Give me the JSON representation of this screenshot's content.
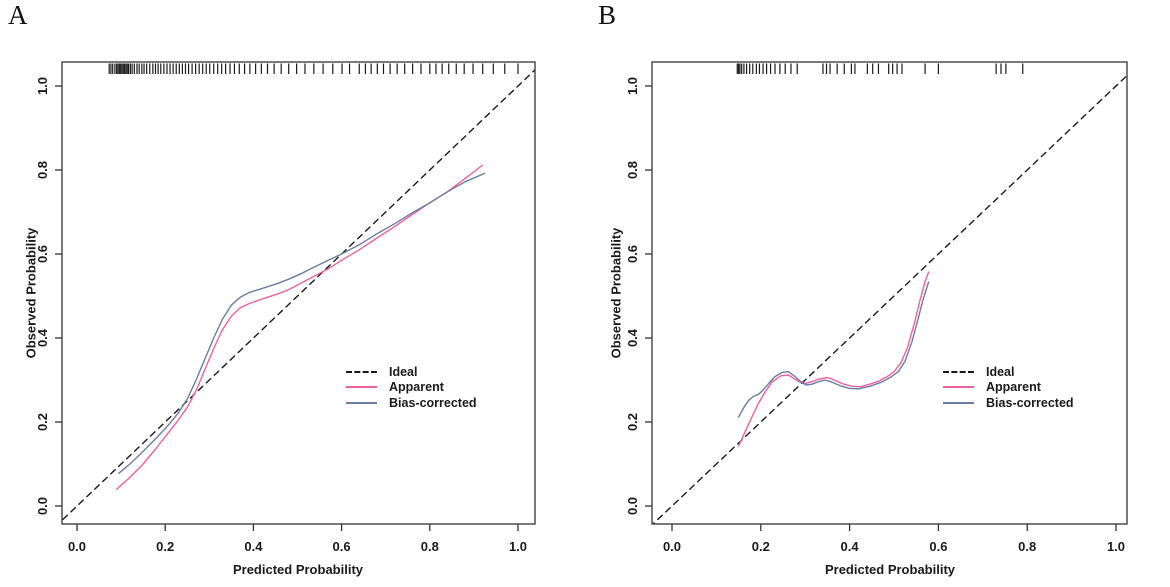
{
  "chart_data": [
    {
      "type": "line",
      "panel_label": "A",
      "title": "",
      "xlabel": "Predicted Probability",
      "ylabel": "Observed  Probability",
      "xlim": [
        -0.04,
        1.04
      ],
      "ylim": [
        -0.04,
        1.04
      ],
      "xticks": [
        "0.0",
        "0.2",
        "0.4",
        "0.6",
        "0.8",
        "1.0"
      ],
      "yticks": [
        "0.0",
        "0.2",
        "0.4",
        "0.6",
        "0.8",
        "1.0"
      ],
      "grid": false,
      "legend": {
        "position": "center-right",
        "entries": [
          {
            "label": "Ideal",
            "color": "#1a1a1a",
            "style": "dashed"
          },
          {
            "label": "Apparent",
            "color": "#EC619F",
            "style": "solid"
          },
          {
            "label": "Bias-corrected",
            "color": "#6A7CA3",
            "style": "solid"
          }
        ]
      },
      "series": [
        {
          "name": "Ideal",
          "color": "#1a1a1a",
          "style": "dashed",
          "points": [
            [
              -0.05,
              -0.05
            ],
            [
              1.08,
              1.08
            ]
          ]
        },
        {
          "name": "Apparent",
          "color": "#EC619F",
          "style": "solid",
          "points": [
            [
              0.09,
              0.04
            ],
            [
              0.12,
              0.068
            ],
            [
              0.15,
              0.1
            ],
            [
              0.18,
              0.138
            ],
            [
              0.21,
              0.178
            ],
            [
              0.23,
              0.205
            ],
            [
              0.25,
              0.235
            ],
            [
              0.27,
              0.275
            ],
            [
              0.29,
              0.325
            ],
            [
              0.31,
              0.375
            ],
            [
              0.33,
              0.42
            ],
            [
              0.35,
              0.452
            ],
            [
              0.37,
              0.472
            ],
            [
              0.39,
              0.482
            ],
            [
              0.42,
              0.493
            ],
            [
              0.45,
              0.503
            ],
            [
              0.48,
              0.515
            ],
            [
              0.51,
              0.532
            ],
            [
              0.54,
              0.548
            ],
            [
              0.57,
              0.565
            ],
            [
              0.6,
              0.585
            ],
            [
              0.64,
              0.61
            ],
            [
              0.68,
              0.638
            ],
            [
              0.72,
              0.665
            ],
            [
              0.76,
              0.694
            ],
            [
              0.8,
              0.722
            ],
            [
              0.84,
              0.748
            ],
            [
              0.88,
              0.78
            ],
            [
              0.92,
              0.812
            ]
          ]
        },
        {
          "name": "Bias-corrected",
          "color": "#6A7CA3",
          "style": "solid",
          "points": [
            [
              0.095,
              0.078
            ],
            [
              0.12,
              0.1
            ],
            [
              0.15,
              0.13
            ],
            [
              0.18,
              0.162
            ],
            [
              0.21,
              0.196
            ],
            [
              0.23,
              0.222
            ],
            [
              0.25,
              0.255
            ],
            [
              0.27,
              0.3
            ],
            [
              0.29,
              0.35
            ],
            [
              0.31,
              0.4
            ],
            [
              0.33,
              0.445
            ],
            [
              0.35,
              0.478
            ],
            [
              0.37,
              0.497
            ],
            [
              0.39,
              0.508
            ],
            [
              0.42,
              0.518
            ],
            [
              0.45,
              0.528
            ],
            [
              0.48,
              0.54
            ],
            [
              0.51,
              0.554
            ],
            [
              0.54,
              0.57
            ],
            [
              0.57,
              0.585
            ],
            [
              0.6,
              0.6
            ],
            [
              0.64,
              0.622
            ],
            [
              0.68,
              0.648
            ],
            [
              0.72,
              0.672
            ],
            [
              0.76,
              0.698
            ],
            [
              0.8,
              0.722
            ],
            [
              0.84,
              0.748
            ],
            [
              0.88,
              0.772
            ],
            [
              0.924,
              0.792
            ]
          ]
        }
      ],
      "rug": [
        0.073,
        0.077,
        0.081,
        0.086,
        0.09,
        0.093,
        0.096,
        0.099,
        0.102,
        0.105,
        0.108,
        0.111,
        0.114,
        0.117,
        0.121,
        0.125,
        0.13,
        0.136,
        0.141,
        0.147,
        0.152,
        0.158,
        0.165,
        0.172,
        0.178,
        0.184,
        0.19,
        0.197,
        0.204,
        0.211,
        0.218,
        0.225,
        0.232,
        0.239,
        0.246,
        0.253,
        0.261,
        0.269,
        0.277,
        0.285,
        0.293,
        0.301,
        0.31,
        0.319,
        0.328,
        0.337,
        0.347,
        0.357,
        0.368,
        0.38,
        0.392,
        0.405,
        0.418,
        0.432,
        0.447,
        0.463,
        0.48,
        0.498,
        0.517,
        0.537,
        0.558,
        0.58,
        0.601,
        0.618,
        0.64,
        0.654,
        0.667,
        0.681,
        0.695,
        0.71,
        0.726,
        0.743,
        0.761,
        0.78,
        0.8,
        0.814,
        0.828,
        0.843,
        0.86,
        0.878,
        0.898,
        0.92,
        0.944,
        0.97,
        1.0
      ]
    },
    {
      "type": "line",
      "panel_label": "B",
      "title": "",
      "xlabel": "Predicted Probability",
      "ylabel": "Observed  Probability",
      "xlim": [
        -0.04,
        1.04
      ],
      "ylim": [
        -0.04,
        1.04
      ],
      "xticks": [
        "0.0",
        "0.2",
        "0.4",
        "0.6",
        "0.8",
        "1.0"
      ],
      "yticks": [
        "0.0",
        "0.2",
        "0.4",
        "0.6",
        "0.8",
        "1.0"
      ],
      "grid": false,
      "legend": {
        "position": "center-right",
        "entries": [
          {
            "label": "Ideal",
            "color": "#1a1a1a",
            "style": "dashed"
          },
          {
            "label": "Apparent",
            "color": "#EC619F",
            "style": "solid"
          },
          {
            "label": "Bias-corrected",
            "color": "#6A7CA3",
            "style": "solid"
          }
        ]
      },
      "series": [
        {
          "name": "Ideal",
          "color": "#1a1a1a",
          "style": "dashed",
          "points": [
            [
              -0.05,
              -0.05
            ],
            [
              1.08,
              1.08
            ]
          ]
        },
        {
          "name": "Apparent",
          "color": "#EC619F",
          "style": "solid",
          "points": [
            [
              0.15,
              0.143
            ],
            [
              0.165,
              0.178
            ],
            [
              0.18,
              0.212
            ],
            [
              0.195,
              0.245
            ],
            [
              0.21,
              0.272
            ],
            [
              0.225,
              0.295
            ],
            [
              0.245,
              0.31
            ],
            [
              0.262,
              0.312
            ],
            [
              0.275,
              0.303
            ],
            [
              0.29,
              0.294
            ],
            [
              0.3,
              0.292
            ],
            [
              0.315,
              0.296
            ],
            [
              0.33,
              0.302
            ],
            [
              0.35,
              0.306
            ],
            [
              0.365,
              0.3
            ],
            [
              0.385,
              0.291
            ],
            [
              0.405,
              0.285
            ],
            [
              0.425,
              0.284
            ],
            [
              0.445,
              0.29
            ],
            [
              0.465,
              0.297
            ],
            [
              0.485,
              0.308
            ],
            [
              0.5,
              0.32
            ],
            [
              0.515,
              0.34
            ],
            [
              0.53,
              0.376
            ],
            [
              0.545,
              0.432
            ],
            [
              0.558,
              0.488
            ],
            [
              0.57,
              0.535
            ],
            [
              0.578,
              0.557
            ]
          ]
        },
        {
          "name": "Bias-corrected",
          "color": "#6A7CA3",
          "style": "solid",
          "points": [
            [
              0.15,
              0.212
            ],
            [
              0.162,
              0.235
            ],
            [
              0.173,
              0.252
            ],
            [
              0.185,
              0.262
            ],
            [
              0.195,
              0.266
            ],
            [
              0.205,
              0.276
            ],
            [
              0.218,
              0.292
            ],
            [
              0.232,
              0.308
            ],
            [
              0.248,
              0.318
            ],
            [
              0.262,
              0.32
            ],
            [
              0.275,
              0.31
            ],
            [
              0.29,
              0.296
            ],
            [
              0.302,
              0.288
            ],
            [
              0.315,
              0.29
            ],
            [
              0.33,
              0.296
            ],
            [
              0.345,
              0.3
            ],
            [
              0.36,
              0.295
            ],
            [
              0.38,
              0.286
            ],
            [
              0.4,
              0.28
            ],
            [
              0.42,
              0.279
            ],
            [
              0.445,
              0.285
            ],
            [
              0.47,
              0.294
            ],
            [
              0.49,
              0.305
            ],
            [
              0.51,
              0.32
            ],
            [
              0.525,
              0.345
            ],
            [
              0.54,
              0.39
            ],
            [
              0.553,
              0.44
            ],
            [
              0.565,
              0.49
            ],
            [
              0.578,
              0.533
            ]
          ]
        }
      ],
      "rug": [
        0.147,
        0.15,
        0.153,
        0.157,
        0.162,
        0.168,
        0.175,
        0.182,
        0.19,
        0.197,
        0.205,
        0.213,
        0.222,
        0.232,
        0.243,
        0.255,
        0.268,
        0.282,
        0.34,
        0.348,
        0.356,
        0.372,
        0.388,
        0.404,
        0.412,
        0.44,
        0.452,
        0.465,
        0.488,
        0.497,
        0.507,
        0.518,
        0.57,
        0.6,
        0.73,
        0.741,
        0.752,
        0.79
      ]
    }
  ]
}
